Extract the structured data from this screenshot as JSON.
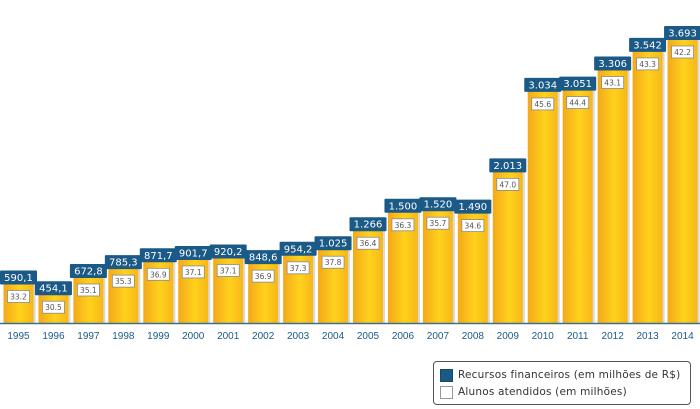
{
  "chart_data": {
    "type": "bar",
    "title": "",
    "xlabel": "",
    "ylabel": "",
    "categories": [
      "1995",
      "1996",
      "1997",
      "1998",
      "1999",
      "2000",
      "2001",
      "2002",
      "2003",
      "2004",
      "2005",
      "2006",
      "2007",
      "2008",
      "2009",
      "2010",
      "2011",
      "2012",
      "2013",
      "2014"
    ],
    "series": [
      {
        "name": "Recursos financeiros (em milhões de R$)",
        "values": [
          590.1,
          454.1,
          672.8,
          785.3,
          871.7,
          901.7,
          920.2,
          848.6,
          954.2,
          1025,
          1266,
          1500,
          1520,
          1490,
          2013,
          3034,
          3051,
          3306,
          3542,
          3693
        ],
        "labels": [
          "590,1",
          "454,1",
          "672,8",
          "785,3",
          "871,7",
          "901,7",
          "920,2",
          "848,6",
          "954,2",
          "1.025",
          "1.266",
          "1.500",
          "1.520",
          "1.490",
          "2.013",
          "3.034",
          "3.051",
          "3.306",
          "3.542",
          "3.693"
        ],
        "color": "#1b5a86"
      },
      {
        "name": "Alunos atendidos (em milhões)",
        "values": [
          33.2,
          30.5,
          35.1,
          35.3,
          36.9,
          37.1,
          37.1,
          36.9,
          37.3,
          37.8,
          36.4,
          36.3,
          35.7,
          34.6,
          47.0,
          45.6,
          44.4,
          43.1,
          43.3,
          42.2
        ],
        "labels": [
          "33.2",
          "30.5",
          "35.1",
          "35.3",
          "36.9",
          "37.1",
          "37.1",
          "36.9",
          "37.3",
          "37.8",
          "36.4",
          "36.3",
          "35.7",
          "34.6",
          "47.0",
          "45.6",
          "44.4",
          "43.1",
          "43.3",
          "42.2"
        ],
        "color": "#ffffff"
      }
    ],
    "ylim": [
      0,
      3700
    ],
    "grid": false,
    "legend": "bottom-right",
    "bar_color": "#f7b718"
  }
}
